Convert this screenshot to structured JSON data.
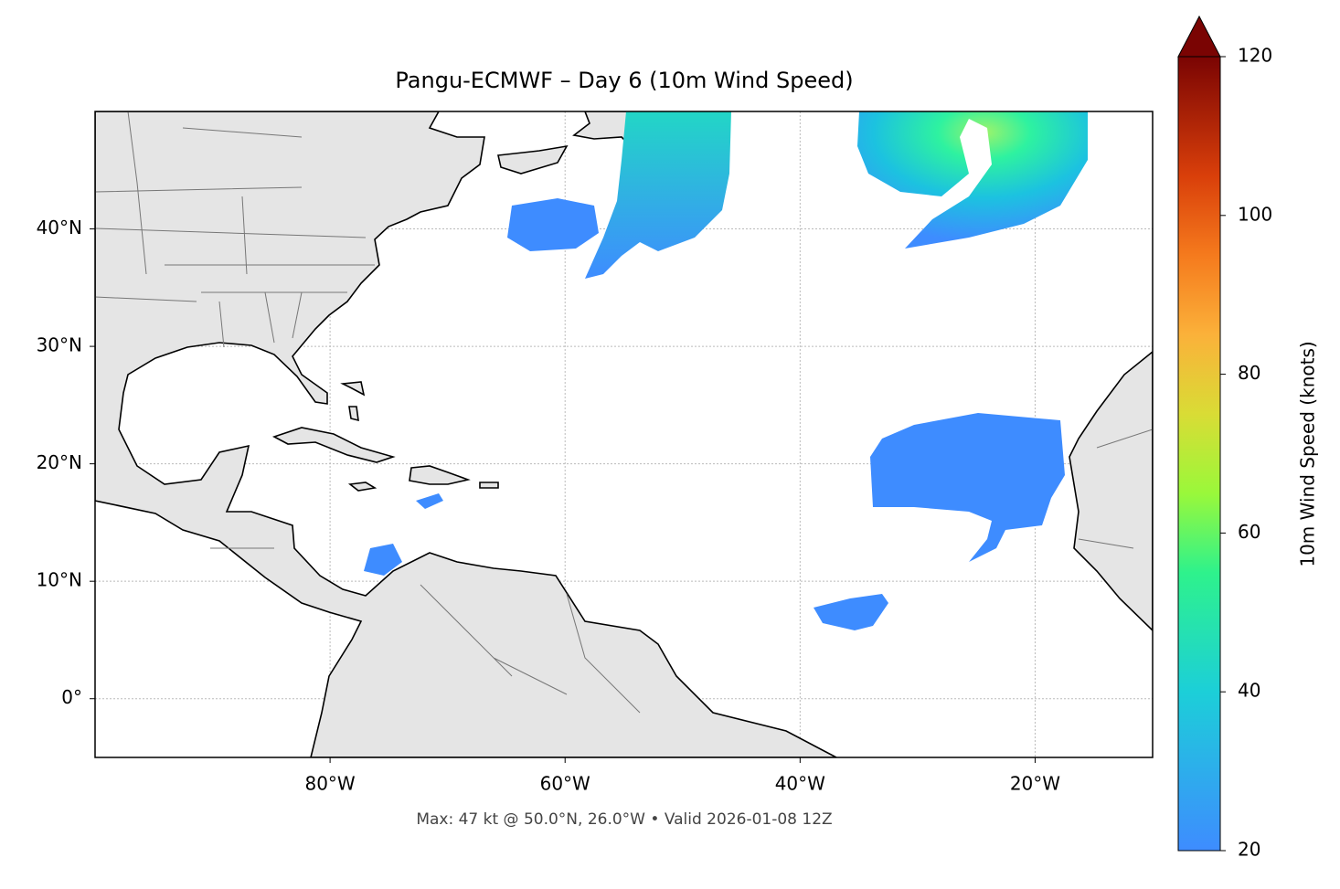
{
  "chart_data": {
    "type": "map",
    "title": "Pangu-ECMWF – Day 6 (10m Wind Speed)",
    "footer": "Max: 47 kt @ 50.0°N, 26.0°W • Valid 2026-01-08 12Z",
    "xlim": [
      -100,
      -10
    ],
    "ylim": [
      -5,
      50
    ],
    "xticks": [
      {
        "value": -80,
        "label": "80°W"
      },
      {
        "value": -60,
        "label": "60°W"
      },
      {
        "value": -40,
        "label": "40°W"
      },
      {
        "value": -20,
        "label": "20°W"
      }
    ],
    "yticks": [
      {
        "value": 0,
        "label": "0°"
      },
      {
        "value": 10,
        "label": "10°N"
      },
      {
        "value": 20,
        "label": "20°N"
      },
      {
        "value": 30,
        "label": "30°N"
      },
      {
        "value": 40,
        "label": "40°N"
      }
    ],
    "grid": true,
    "colorbar": {
      "label": "10m Wind Speed (knots)",
      "lim": [
        20,
        120
      ],
      "ticks": [
        20,
        40,
        60,
        80,
        100,
        120
      ]
    }
  }
}
